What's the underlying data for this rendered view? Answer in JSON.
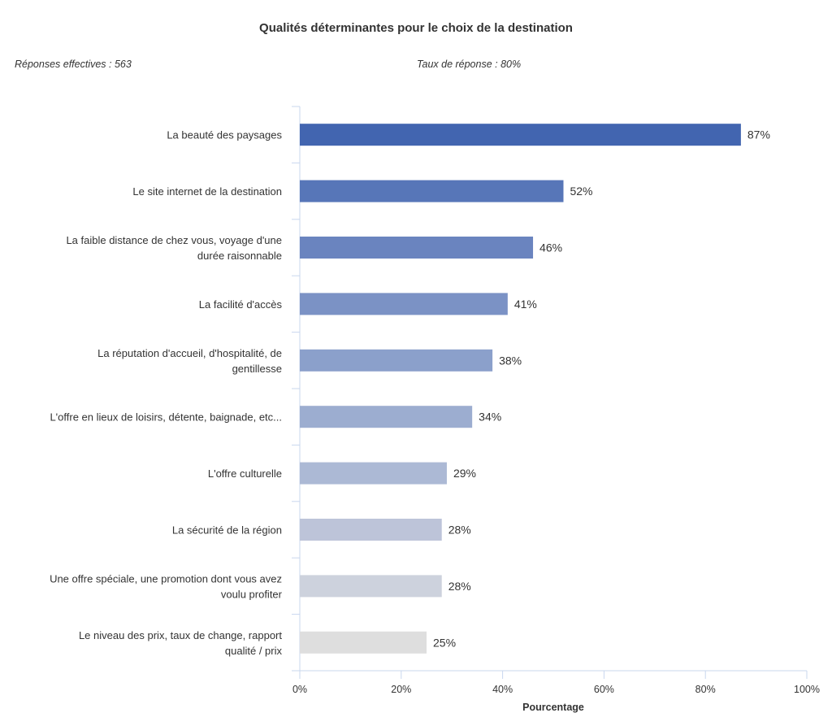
{
  "header": {
    "title": "Qualités déterminantes pour le choix de la destination",
    "responses": "Réponses effectives : 563",
    "rate": "Taux de réponse : 80%"
  },
  "chart_data": {
    "type": "bar",
    "orientation": "horizontal",
    "title": "Qualités déterminantes pour le choix de la destination",
    "xlabel": "Pourcentage",
    "ylabel": "",
    "xlim": [
      0,
      100
    ],
    "x_ticks": [
      "0%",
      "20%",
      "40%",
      "60%",
      "80%",
      "100%"
    ],
    "grid": false,
    "categories": [
      [
        "La beauté des paysages"
      ],
      [
        "Le site internet de la destination"
      ],
      [
        "La faible distance de chez vous, voyage d'une",
        "durée raisonnable"
      ],
      [
        "La facilité d'accès"
      ],
      [
        "La réputation d'accueil, d'hospitalité, de",
        "gentillesse"
      ],
      [
        "L'offre en lieux de loisirs, détente, baignade, etc..."
      ],
      [
        "L'offre culturelle"
      ],
      [
        "La sécurité de la région"
      ],
      [
        "Une offre spéciale, une promotion dont vous avez",
        "voulu profiter"
      ],
      [
        "Le niveau des prix, taux de change, rapport",
        "qualité / prix"
      ]
    ],
    "values": [
      87,
      52,
      46,
      41,
      38,
      34,
      29,
      28,
      28,
      25
    ],
    "value_labels": [
      "87%",
      "52%",
      "46%",
      "41%",
      "38%",
      "34%",
      "29%",
      "28%",
      "28%",
      "25%"
    ],
    "colors": [
      "#4265b0",
      "#5776b8",
      "#6a84bf",
      "#7b92c5",
      "#8ba0cb",
      "#9cadd0",
      "#acb9d5",
      "#bdc4d9",
      "#cdd2dd",
      "#dedede"
    ],
    "axis_color": "#c9d7ee"
  }
}
